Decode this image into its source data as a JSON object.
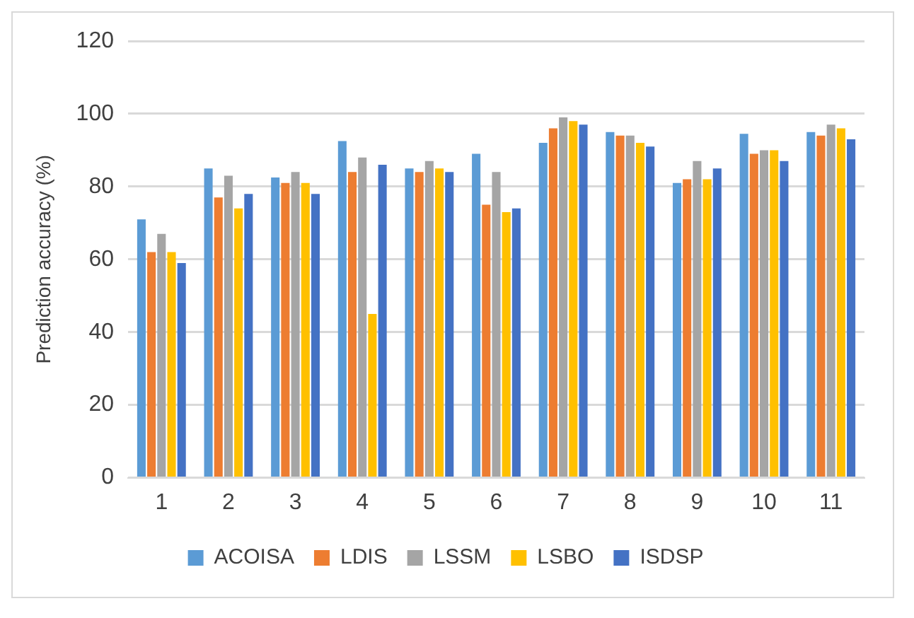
{
  "chart_data": {
    "type": "bar",
    "ylabel": "Prediction accuracy (%)",
    "categories": [
      "1",
      "2",
      "3",
      "4",
      "5",
      "6",
      "7",
      "8",
      "9",
      "10",
      "11"
    ],
    "series": [
      {
        "name": "ACOISA",
        "color": "#5b9bd5",
        "values": [
          71,
          85,
          82.5,
          92.5,
          85,
          89,
          92,
          95,
          81,
          94.5,
          95
        ]
      },
      {
        "name": "LDIS",
        "color": "#ed7d31",
        "values": [
          62,
          77,
          81,
          84,
          84,
          75,
          96,
          94,
          82,
          89,
          94
        ]
      },
      {
        "name": "LSSM",
        "color": "#a5a5a5",
        "values": [
          67,
          83,
          84,
          88,
          87,
          84,
          99,
          94,
          87,
          90,
          97
        ]
      },
      {
        "name": "LSBO",
        "color": "#ffc000",
        "values": [
          62,
          74,
          81,
          45,
          85,
          73,
          98,
          92,
          82,
          90,
          96
        ]
      },
      {
        "name": "ISDSP",
        "color": "#4472c4",
        "values": [
          59,
          78,
          78,
          86,
          84,
          74,
          97,
          91,
          85,
          87,
          93
        ]
      }
    ],
    "ylim": [
      0,
      120
    ],
    "yticks": [
      0,
      20,
      40,
      60,
      80,
      100,
      120
    ],
    "grid": "y",
    "legend": "bottom"
  }
}
